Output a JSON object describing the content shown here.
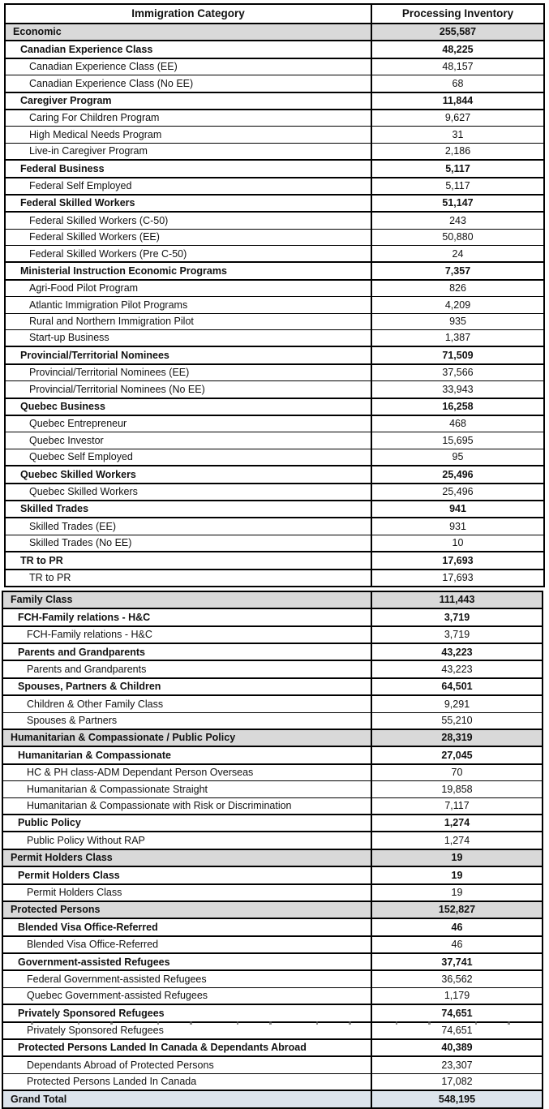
{
  "header": {
    "category_col": "Immigration Category",
    "inventory_col": "Processing Inventory"
  },
  "colors": {
    "section_bg": "#d9d9d9",
    "grand_total_bg": "#dce4ec",
    "border": "#000000"
  },
  "tables": [
    {
      "rows": [
        {
          "label": "Economic",
          "value": "255,587",
          "level": "section"
        },
        {
          "label": "Canadian Experience Class",
          "value": "48,225",
          "level": "group"
        },
        {
          "label": "Canadian Experience Class (EE)",
          "value": "48,157",
          "level": "detail"
        },
        {
          "label": "Canadian Experience Class (No EE)",
          "value": "68",
          "level": "detail"
        },
        {
          "label": "Caregiver Program",
          "value": "11,844",
          "level": "group"
        },
        {
          "label": "Caring For Children Program",
          "value": "9,627",
          "level": "detail"
        },
        {
          "label": "High Medical Needs Program",
          "value": "31",
          "level": "detail"
        },
        {
          "label": "Live-in Caregiver Program",
          "value": "2,186",
          "level": "detail"
        },
        {
          "label": "Federal Business",
          "value": "5,117",
          "level": "group"
        },
        {
          "label": "Federal Self Employed",
          "value": "5,117",
          "level": "detail"
        },
        {
          "label": "Federal Skilled Workers",
          "value": "51,147",
          "level": "group"
        },
        {
          "label": "Federal Skilled Workers (C-50)",
          "value": "243",
          "level": "detail"
        },
        {
          "label": "Federal Skilled Workers (EE)",
          "value": "50,880",
          "level": "detail"
        },
        {
          "label": "Federal Skilled Workers (Pre C-50)",
          "value": "24",
          "level": "detail"
        },
        {
          "label": "Ministerial Instruction Economic Programs",
          "value": "7,357",
          "level": "group"
        },
        {
          "label": "Agri-Food Pilot Program",
          "value": "826",
          "level": "detail"
        },
        {
          "label": "Atlantic Immigration Pilot Programs",
          "value": "4,209",
          "level": "detail"
        },
        {
          "label": "Rural and Northern Immigration Pilot",
          "value": "935",
          "level": "detail"
        },
        {
          "label": "Start-up Business",
          "value": "1,387",
          "level": "detail"
        },
        {
          "label": "Provincial/Territorial Nominees",
          "value": "71,509",
          "level": "group"
        },
        {
          "label": "Provincial/Territorial Nominees (EE)",
          "value": "37,566",
          "level": "detail"
        },
        {
          "label": "Provincial/Territorial Nominees (No EE)",
          "value": "33,943",
          "level": "detail"
        },
        {
          "label": "Quebec Business",
          "value": "16,258",
          "level": "group"
        },
        {
          "label": "Quebec Entrepreneur",
          "value": "468",
          "level": "detail"
        },
        {
          "label": "Quebec Investor",
          "value": "15,695",
          "level": "detail"
        },
        {
          "label": "Quebec Self Employed",
          "value": "95",
          "level": "detail"
        },
        {
          "label": "Quebec Skilled Workers",
          "value": "25,496",
          "level": "group"
        },
        {
          "label": "Quebec Skilled Workers",
          "value": "25,496",
          "level": "detail"
        },
        {
          "label": "Skilled Trades",
          "value": "941",
          "level": "group"
        },
        {
          "label": "Skilled Trades (EE)",
          "value": "931",
          "level": "detail"
        },
        {
          "label": "Skilled Trades (No EE)",
          "value": "10",
          "level": "detail"
        },
        {
          "label": "TR to PR",
          "value": "17,693",
          "level": "group"
        },
        {
          "label": "TR to PR",
          "value": "17,693",
          "level": "detail"
        }
      ]
    },
    {
      "rows": [
        {
          "label": "Family Class",
          "value": "111,443",
          "level": "section"
        },
        {
          "label": "FCH-Family relations - H&C",
          "value": "3,719",
          "level": "group"
        },
        {
          "label": "FCH-Family relations - H&C",
          "value": "3,719",
          "level": "detail"
        },
        {
          "label": "Parents and Grandparents",
          "value": "43,223",
          "level": "group"
        },
        {
          "label": "Parents and Grandparents",
          "value": "43,223",
          "level": "detail"
        },
        {
          "label": "Spouses, Partners & Children",
          "value": "64,501",
          "level": "group"
        },
        {
          "label": "Children & Other Family Class",
          "value": "9,291",
          "level": "detail"
        },
        {
          "label": "Spouses & Partners",
          "value": "55,210",
          "level": "detail"
        },
        {
          "label": "Humanitarian & Compassionate / Public Policy",
          "value": "28,319",
          "level": "section"
        },
        {
          "label": "Humanitarian & Compassionate",
          "value": "27,045",
          "level": "group"
        },
        {
          "label": "HC & PH class-ADM Dependant Person Overseas",
          "value": "70",
          "level": "detail"
        },
        {
          "label": "Humanitarian & Compassionate Straight",
          "value": "19,858",
          "level": "detail"
        },
        {
          "label": "Humanitarian & Compassionate with Risk or Discrimination",
          "value": "7,117",
          "level": "detail"
        },
        {
          "label": "Public Policy",
          "value": "1,274",
          "level": "group"
        },
        {
          "label": "Public Policy Without RAP",
          "value": "1,274",
          "level": "detail"
        },
        {
          "label": "Permit Holders Class",
          "value": "19",
          "level": "section"
        },
        {
          "label": "Permit Holders Class",
          "value": "19",
          "level": "group"
        },
        {
          "label": "Permit Holders Class",
          "value": "19",
          "level": "detail"
        },
        {
          "label": "Protected Persons",
          "value": "152,827",
          "level": "section"
        },
        {
          "label": "Blended Visa Office-Referred",
          "value": "46",
          "level": "group"
        },
        {
          "label": "Blended Visa Office-Referred",
          "value": "46",
          "level": "detail"
        },
        {
          "label": "Government-assisted Refugees",
          "value": "37,741",
          "level": "group"
        },
        {
          "label": "Federal Government-assisted Refugees",
          "value": "36,562",
          "level": "detail"
        },
        {
          "label": "Quebec Government-assisted Refugees",
          "value": "1,179",
          "level": "detail"
        },
        {
          "label": "Privately Sponsored Refugees",
          "value": "74,651",
          "level": "group"
        },
        {
          "label": "Privately Sponsored Refugees",
          "value": "74,651",
          "level": "detail"
        },
        {
          "label": "Protected Persons Landed In Canada & Dependants Abroad",
          "value": "40,389",
          "level": "group"
        },
        {
          "label": "Dependants Abroad of Protected Persons",
          "value": "23,307",
          "level": "detail"
        },
        {
          "label": "Protected Persons Landed In Canada",
          "value": "17,082",
          "level": "detail"
        },
        {
          "label": "Grand Total",
          "value": "548,195",
          "level": "grand"
        }
      ]
    }
  ]
}
